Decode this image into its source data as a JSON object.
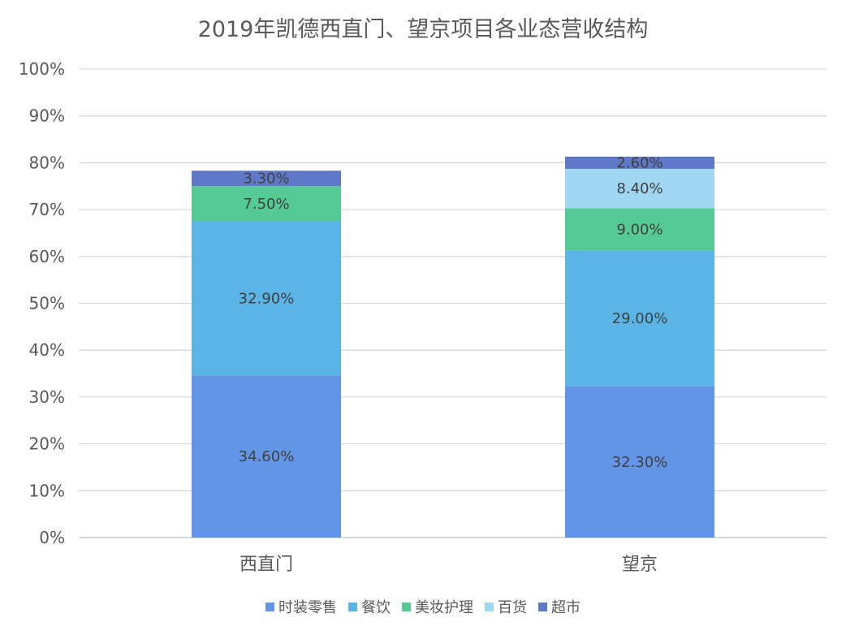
{
  "chart_data": {
    "type": "bar",
    "stacked": true,
    "title": "2019年凯德西直门、望京项目各业态营收结构",
    "categories": [
      "西直门",
      "望京"
    ],
    "y_ticks": [
      "0%",
      "10%",
      "20%",
      "30%",
      "40%",
      "50%",
      "60%",
      "70%",
      "80%",
      "90%",
      "100%"
    ],
    "ylim": [
      0,
      100
    ],
    "grid": true,
    "legend_position": "bottom",
    "series": [
      {
        "name": "时装零售",
        "color": "#6395E6",
        "values": [
          34.6,
          32.3
        ],
        "labels": [
          "34.60%",
          "32.30%"
        ]
      },
      {
        "name": "餐饮",
        "color": "#5AB4E6",
        "values": [
          32.9,
          29.0
        ],
        "labels": [
          "32.90%",
          "29.00%"
        ]
      },
      {
        "name": "美妆护理",
        "color": "#56CA95",
        "values": [
          7.5,
          9.0
        ],
        "labels": [
          "7.50%",
          "9.00%"
        ]
      },
      {
        "name": "百货",
        "color": "#9FD6F0",
        "values": [
          0,
          8.4
        ],
        "labels": [
          "",
          "8.40%"
        ]
      },
      {
        "name": "超市",
        "color": "#5F78C7",
        "values": [
          3.3,
          2.6
        ],
        "labels": [
          "3.30%",
          "2.60%"
        ]
      }
    ]
  }
}
